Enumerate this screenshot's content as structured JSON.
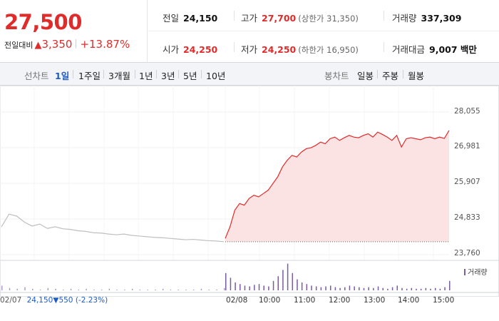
{
  "quote": {
    "price": "27,500",
    "change_label": "전일대비",
    "change_value": "3,350",
    "change_pct": "+13.87%"
  },
  "stats": {
    "prev_close": {
      "label": "전일",
      "value": "24,150"
    },
    "high": {
      "label": "고가",
      "value": "27,700",
      "sub": "(상한가 31,350)"
    },
    "volume": {
      "label": "거래량",
      "value": "337,309"
    },
    "open": {
      "label": "시가",
      "value": "24,250"
    },
    "low": {
      "label": "저가",
      "value": "24,250",
      "sub": "(하한가 16,950)"
    },
    "amount": {
      "label": "거래대금",
      "value": "9,007 백만"
    }
  },
  "line_tabs": {
    "label": "선차트",
    "items": [
      "1일",
      "1주일",
      "3개월",
      "1년",
      "3년",
      "5년",
      "10년"
    ],
    "active": 0
  },
  "candle_tabs": {
    "label": "봉차트",
    "items": [
      "일봉",
      "주봉",
      "월봉"
    ]
  },
  "colors": {
    "up": "#e02b2b",
    "down": "#1e5bc6",
    "prev_line": "#bfbfbf",
    "volume": "#7b5aa6",
    "fill": "#fbe3e3"
  },
  "chart_data": {
    "type": "line",
    "y_ticks": [
      "28,055",
      "26,981",
      "25,907",
      "24,833",
      "23,760"
    ],
    "ylim": [
      23760,
      28055
    ],
    "x_ticks": [
      "02/07",
      "02/08",
      "10:00",
      "11:00",
      "12:00",
      "13:00",
      "14:00",
      "15:00"
    ],
    "prev_day": {
      "date": "02/07",
      "close": "24,150",
      "change": "550",
      "change_pct": "(-2.23%)"
    },
    "volume_legend": "거래량",
    "series": [
      {
        "day": "02/07",
        "values": [
          24600,
          24980,
          24920,
          24740,
          24620,
          24680,
          24550,
          24600,
          24540,
          24520,
          24480,
          24460,
          24420,
          24410,
          24380,
          24360,
          24380,
          24340,
          24320,
          24300,
          24280,
          24270,
          24250,
          24230,
          24210,
          24220,
          24200,
          24180,
          24170,
          24150
        ]
      },
      {
        "day": "02/08",
        "values": [
          24250,
          24600,
          25100,
          25300,
          25250,
          25450,
          25550,
          25500,
          25600,
          25700,
          25900,
          26100,
          26400,
          26600,
          26750,
          26700,
          26850,
          26950,
          26980,
          27050,
          27150,
          27100,
          27250,
          27300,
          27200,
          27280,
          27350,
          27300,
          27280,
          27350,
          27400,
          27300,
          27450,
          27380,
          27300,
          27200,
          27350,
          27000,
          27250,
          27280,
          27250,
          27220,
          27280,
          27300,
          27250,
          27300,
          27260,
          27500
        ]
      }
    ],
    "volume": {
      "prev_day": [
        6,
        3,
        2,
        4,
        2,
        1,
        3,
        2,
        1,
        2,
        1,
        2,
        1,
        1,
        2,
        1,
        1,
        2,
        1,
        1,
        1,
        2,
        1,
        1,
        1,
        1,
        2,
        1,
        1,
        3
      ],
      "today": [
        22,
        16,
        10,
        8,
        6,
        5,
        7,
        8,
        6,
        5,
        12,
        18,
        26,
        34,
        22,
        14,
        10,
        8,
        6,
        5,
        4,
        5,
        6,
        4,
        3,
        4,
        6,
        5,
        4,
        3,
        4,
        3,
        5,
        3,
        2,
        4,
        6,
        3,
        2,
        3,
        2,
        2,
        3,
        2,
        3,
        2,
        4,
        12
      ]
    }
  }
}
